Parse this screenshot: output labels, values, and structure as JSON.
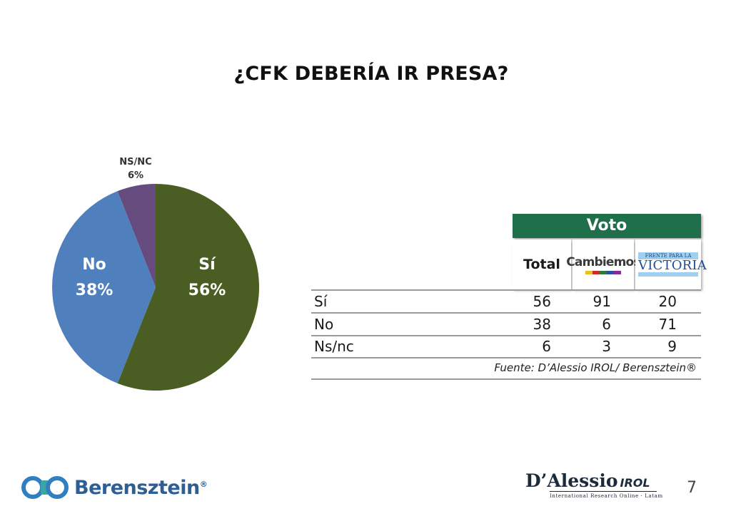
{
  "title": "¿CFK DEBERÍA IR PRESA?",
  "chart_data": {
    "type": "pie",
    "title": "¿CFK DEBERÍA IR PRESA?",
    "slices": [
      {
        "label": "Sí",
        "value": 56,
        "value_label": "56%",
        "color": "#4a5e24"
      },
      {
        "label": "No",
        "value": 38,
        "value_label": "38%",
        "color": "#4f7fbd"
      },
      {
        "label": "NS/NC",
        "value": 6,
        "value_label": "6%",
        "color": "#664b7e"
      }
    ]
  },
  "table": {
    "group_header": "Voto",
    "column_total": "Total",
    "column_cambiemos_logo": "Cambiemos",
    "column_fpv_logo_top": "FRENTE PARA LA",
    "column_fpv_logo_main": "VICTORIA",
    "rows": [
      {
        "label": "Sí",
        "total": "56",
        "cambiemos": "91",
        "fpv": "20"
      },
      {
        "label": "No",
        "total": "38",
        "cambiemos": "6",
        "fpv": "71"
      },
      {
        "label": "Ns/nc",
        "total": "6",
        "cambiemos": "3",
        "fpv": "9"
      }
    ],
    "source": "Fuente: D’Alessio IROL/ Berensztein®"
  },
  "footer": {
    "berensztein_logo_text": "Berensztein",
    "berensztein_reg": "®",
    "dalessio_logo_text": "D’Alessio",
    "dalessio_irol": "IROL",
    "dalessio_sub": "International Research Online · Latam",
    "page_number": "7"
  },
  "colors": {
    "voto_header": "#1f6f4a",
    "cambiemos_bar": [
      "#e8c020",
      "#d12a2a",
      "#2a7a3a",
      "#2a4ea0",
      "#8a2a9a"
    ],
    "berensztein": "#2f5e92"
  }
}
